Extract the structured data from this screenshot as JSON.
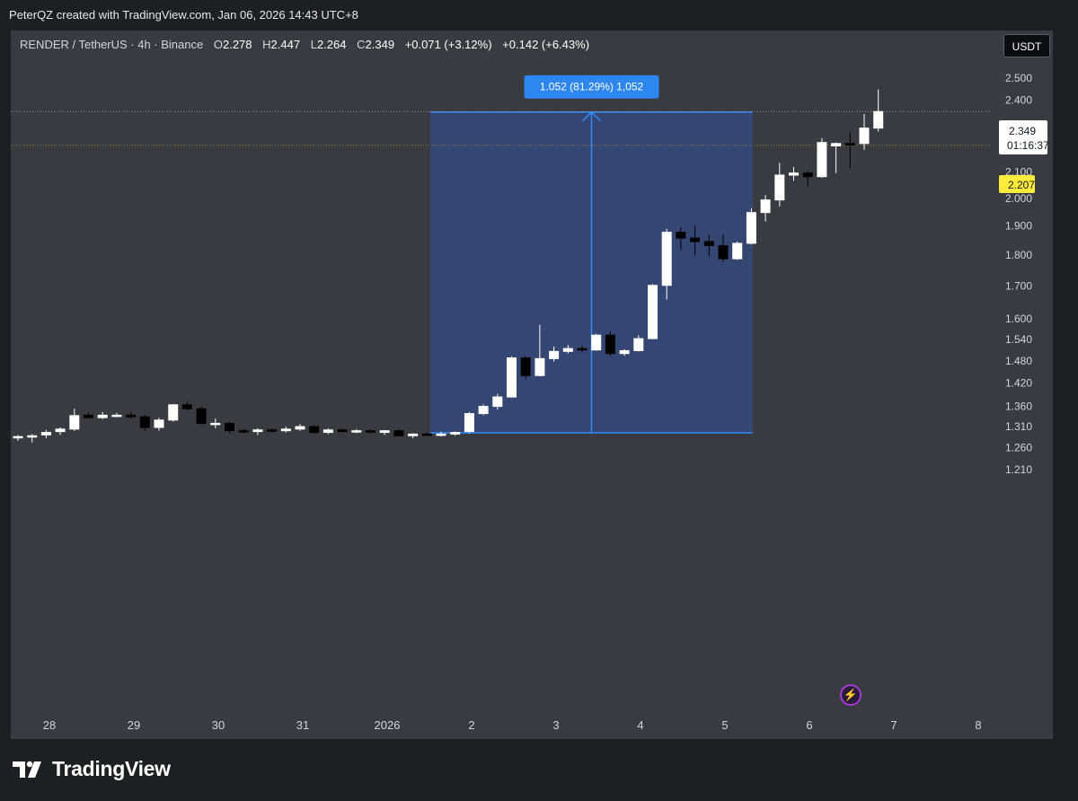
{
  "header": {
    "watermark_text": "PeterQZ created with TradingView.com, Jan 06, 2026 14:43 UTC+8"
  },
  "legend": {
    "symbol": "RENDER / TetherUS · 4h · Binance",
    "open_label": "O",
    "open": "2.278",
    "high_label": "H",
    "high": "2.447",
    "low_label": "L",
    "low": "2.264",
    "close_label": "C",
    "close": "2.349",
    "change": "+0.071 (+3.12%)",
    "change2": "+0.142 (+6.43%)"
  },
  "currency_button": "USDT",
  "price_label": {
    "value": "2.349",
    "countdown": "01:16:37"
  },
  "yellow_label": "2.207",
  "measure_label": "1.052 (81.29%) 1,052",
  "branding": {
    "name": "TradingView"
  },
  "colors": {
    "background": "#3a3b40",
    "up": "#ffffff",
    "down": "#000000",
    "measure_fill": "#2962ff",
    "measure_line": "#2f8cff",
    "yellow": "#ffeb3b"
  },
  "chart_data": {
    "type": "candlestick",
    "interval": "4h",
    "y_scale": "log",
    "ylim": [
      1.18,
      2.6
    ],
    "y_ticks": [
      "1.210",
      "1.260",
      "1.310",
      "1.360",
      "1.420",
      "1.480",
      "1.540",
      "1.600",
      "1.700",
      "1.800",
      "1.900",
      "2.000",
      "2.100",
      "2.207",
      "2.400",
      "2.500"
    ],
    "x_ticks": [
      "28",
      "29",
      "30",
      "31",
      "2026",
      "2",
      "3",
      "4",
      "5",
      "6",
      "7",
      "8"
    ],
    "measure": {
      "from_price": 1.295,
      "to_price": 2.347,
      "change": 1.052,
      "percent": 81.29
    },
    "dotted_lines": [
      2.349,
      2.207
    ],
    "candles": [
      {
        "o": 1.284,
        "h": 1.29,
        "l": 1.276,
        "c": 1.286
      },
      {
        "o": 1.286,
        "h": 1.292,
        "l": 1.272,
        "c": 1.288
      },
      {
        "o": 1.29,
        "h": 1.302,
        "l": 1.282,
        "c": 1.296
      },
      {
        "o": 1.298,
        "h": 1.308,
        "l": 1.29,
        "c": 1.304
      },
      {
        "o": 1.304,
        "h": 1.354,
        "l": 1.3,
        "c": 1.337
      },
      {
        "o": 1.338,
        "h": 1.345,
        "l": 1.33,
        "c": 1.332
      },
      {
        "o": 1.332,
        "h": 1.346,
        "l": 1.328,
        "c": 1.338
      },
      {
        "o": 1.338,
        "h": 1.344,
        "l": 1.334,
        "c": 1.338
      },
      {
        "o": 1.338,
        "h": 1.346,
        "l": 1.33,
        "c": 1.334
      },
      {
        "o": 1.334,
        "h": 1.34,
        "l": 1.3,
        "c": 1.308
      },
      {
        "o": 1.308,
        "h": 1.332,
        "l": 1.3,
        "c": 1.326
      },
      {
        "o": 1.326,
        "h": 1.366,
        "l": 1.322,
        "c": 1.364
      },
      {
        "o": 1.364,
        "h": 1.372,
        "l": 1.35,
        "c": 1.354
      },
      {
        "o": 1.354,
        "h": 1.36,
        "l": 1.314,
        "c": 1.318
      },
      {
        "o": 1.318,
        "h": 1.33,
        "l": 1.306,
        "c": 1.318
      },
      {
        "o": 1.318,
        "h": 1.322,
        "l": 1.294,
        "c": 1.3
      },
      {
        "o": 1.3,
        "h": 1.304,
        "l": 1.294,
        "c": 1.298
      },
      {
        "o": 1.298,
        "h": 1.306,
        "l": 1.29,
        "c": 1.302
      },
      {
        "o": 1.302,
        "h": 1.306,
        "l": 1.296,
        "c": 1.3
      },
      {
        "o": 1.3,
        "h": 1.31,
        "l": 1.296,
        "c": 1.304
      },
      {
        "o": 1.304,
        "h": 1.316,
        "l": 1.3,
        "c": 1.31
      },
      {
        "o": 1.31,
        "h": 1.314,
        "l": 1.292,
        "c": 1.296
      },
      {
        "o": 1.296,
        "h": 1.306,
        "l": 1.292,
        "c": 1.302
      },
      {
        "o": 1.302,
        "h": 1.306,
        "l": 1.296,
        "c": 1.298
      },
      {
        "o": 1.298,
        "h": 1.304,
        "l": 1.294,
        "c": 1.3
      },
      {
        "o": 1.3,
        "h": 1.304,
        "l": 1.294,
        "c": 1.298
      },
      {
        "o": 1.296,
        "h": 1.302,
        "l": 1.29,
        "c": 1.3
      },
      {
        "o": 1.3,
        "h": 1.304,
        "l": 1.286,
        "c": 1.288
      },
      {
        "o": 1.288,
        "h": 1.294,
        "l": 1.282,
        "c": 1.292
      },
      {
        "o": 1.292,
        "h": 1.296,
        "l": 1.288,
        "c": 1.29
      },
      {
        "o": 1.29,
        "h": 1.298,
        "l": 1.286,
        "c": 1.292
      },
      {
        "o": 1.292,
        "h": 1.298,
        "l": 1.288,
        "c": 1.296
      },
      {
        "o": 1.298,
        "h": 1.346,
        "l": 1.294,
        "c": 1.342
      },
      {
        "o": 1.342,
        "h": 1.365,
        "l": 1.338,
        "c": 1.36
      },
      {
        "o": 1.36,
        "h": 1.392,
        "l": 1.352,
        "c": 1.384
      },
      {
        "o": 1.384,
        "h": 1.492,
        "l": 1.382,
        "c": 1.488
      },
      {
        "o": 1.488,
        "h": 1.493,
        "l": 1.43,
        "c": 1.44
      },
      {
        "o": 1.44,
        "h": 1.582,
        "l": 1.438,
        "c": 1.486
      },
      {
        "o": 1.486,
        "h": 1.52,
        "l": 1.478,
        "c": 1.506
      },
      {
        "o": 1.506,
        "h": 1.524,
        "l": 1.5,
        "c": 1.514
      },
      {
        "o": 1.514,
        "h": 1.522,
        "l": 1.502,
        "c": 1.51
      },
      {
        "o": 1.51,
        "h": 1.556,
        "l": 1.508,
        "c": 1.552
      },
      {
        "o": 1.552,
        "h": 1.562,
        "l": 1.494,
        "c": 1.5
      },
      {
        "o": 1.5,
        "h": 1.512,
        "l": 1.494,
        "c": 1.508
      },
      {
        "o": 1.508,
        "h": 1.552,
        "l": 1.506,
        "c": 1.542
      },
      {
        "o": 1.542,
        "h": 1.706,
        "l": 1.54,
        "c": 1.702
      },
      {
        "o": 1.702,
        "h": 1.89,
        "l": 1.658,
        "c": 1.878
      },
      {
        "o": 1.878,
        "h": 1.896,
        "l": 1.818,
        "c": 1.858
      },
      {
        "o": 1.858,
        "h": 1.9,
        "l": 1.8,
        "c": 1.846
      },
      {
        "o": 1.846,
        "h": 1.868,
        "l": 1.796,
        "c": 1.832
      },
      {
        "o": 1.832,
        "h": 1.87,
        "l": 1.776,
        "c": 1.788
      },
      {
        "o": 1.788,
        "h": 1.846,
        "l": 1.784,
        "c": 1.84
      },
      {
        "o": 1.84,
        "h": 1.964,
        "l": 1.836,
        "c": 1.948
      },
      {
        "o": 1.948,
        "h": 2.012,
        "l": 1.916,
        "c": 1.994
      },
      {
        "o": 1.994,
        "h": 2.136,
        "l": 1.97,
        "c": 2.088
      },
      {
        "o": 2.088,
        "h": 2.12,
        "l": 2.066,
        "c": 2.096
      },
      {
        "o": 2.096,
        "h": 2.104,
        "l": 2.044,
        "c": 2.082
      },
      {
        "o": 2.082,
        "h": 2.236,
        "l": 2.078,
        "c": 2.218
      },
      {
        "o": 2.204,
        "h": 2.218,
        "l": 2.096,
        "c": 2.214
      },
      {
        "o": 2.214,
        "h": 2.26,
        "l": 2.116,
        "c": 2.208
      },
      {
        "o": 2.214,
        "h": 2.338,
        "l": 2.188,
        "c": 2.278
      },
      {
        "o": 2.278,
        "h": 2.447,
        "l": 2.264,
        "c": 2.349
      }
    ]
  }
}
